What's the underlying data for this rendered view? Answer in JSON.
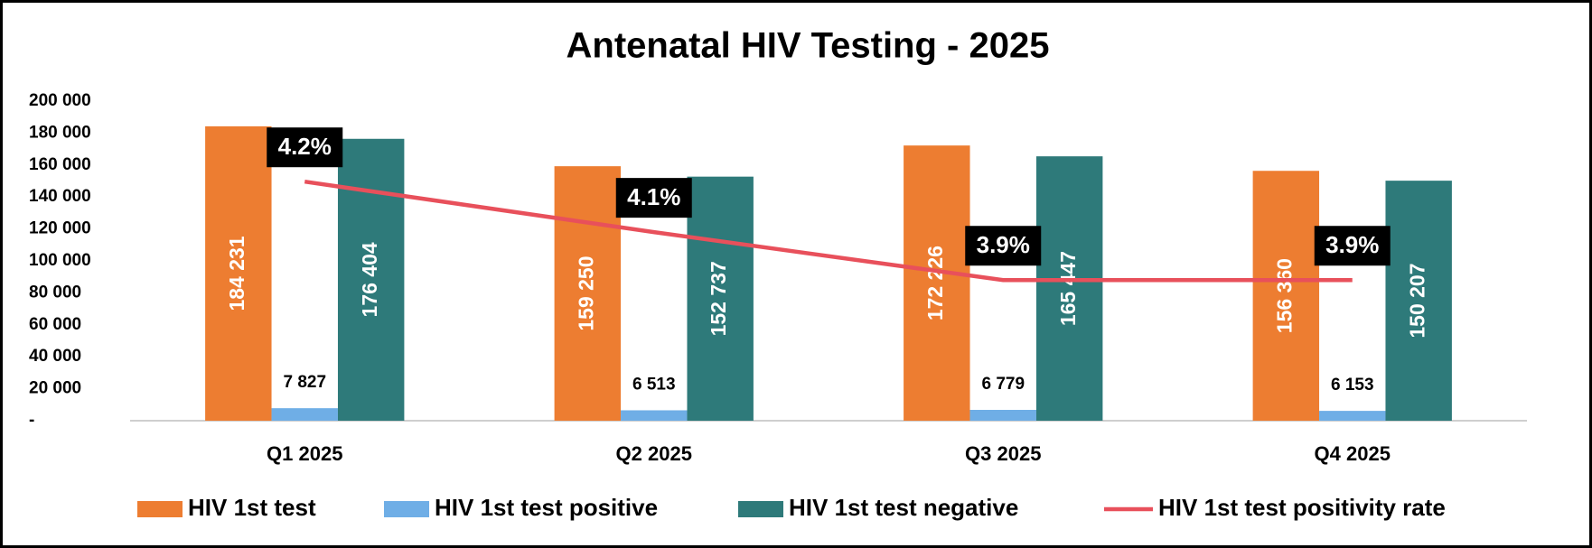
{
  "chart_data": {
    "type": "bar",
    "title": "Antenatal HIV Testing - 2025",
    "categories": [
      "Q1 2025",
      "Q2 2025",
      "Q3 2025",
      "Q4 2025"
    ],
    "series": [
      {
        "name": "HIV 1st test",
        "color": "#ED7D31",
        "values": [
          184231,
          159250,
          172226,
          156360
        ],
        "value_labels": [
          "184 231",
          "159 250",
          "172 226",
          "156 360"
        ]
      },
      {
        "name": "HIV 1st test positive",
        "color": "#6FAEE6",
        "values": [
          7827,
          6513,
          6779,
          6153
        ],
        "value_labels": [
          "7 827",
          "6 513",
          "6 779",
          "6 153"
        ]
      },
      {
        "name": "HIV 1st test negative",
        "color": "#2E7A7A",
        "values": [
          176404,
          152737,
          165447,
          150207
        ],
        "value_labels": [
          "176 404",
          "152 737",
          "165 447",
          "150 207"
        ]
      },
      {
        "name": "HIV 1st test positivity rate",
        "color": "#E8505B",
        "type": "line",
        "axis": "y2",
        "values": [
          4.248,
          4.09,
          3.94,
          3.94
        ],
        "value_labels": [
          "4.2%",
          "4.1%",
          "3.9%",
          "3.9%"
        ]
      }
    ],
    "ylim": [
      0,
      200000
    ],
    "yticks": [
      {
        "value": 0,
        "label": "-"
      },
      {
        "value": 20000,
        "label": "20 000"
      },
      {
        "value": 40000,
        "label": "40 000"
      },
      {
        "value": 60000,
        "label": "60 000"
      },
      {
        "value": 80000,
        "label": "80 000"
      },
      {
        "value": 100000,
        "label": "100 000"
      },
      {
        "value": 120000,
        "label": "120 000"
      },
      {
        "value": 140000,
        "label": "140 000"
      },
      {
        "value": 160000,
        "label": "160 000"
      },
      {
        "value": 180000,
        "label": "180 000"
      },
      {
        "value": 200000,
        "label": "200 000"
      }
    ],
    "y2lim": [
      3.5,
      4.5
    ],
    "grid": false,
    "legend": "bottom"
  }
}
